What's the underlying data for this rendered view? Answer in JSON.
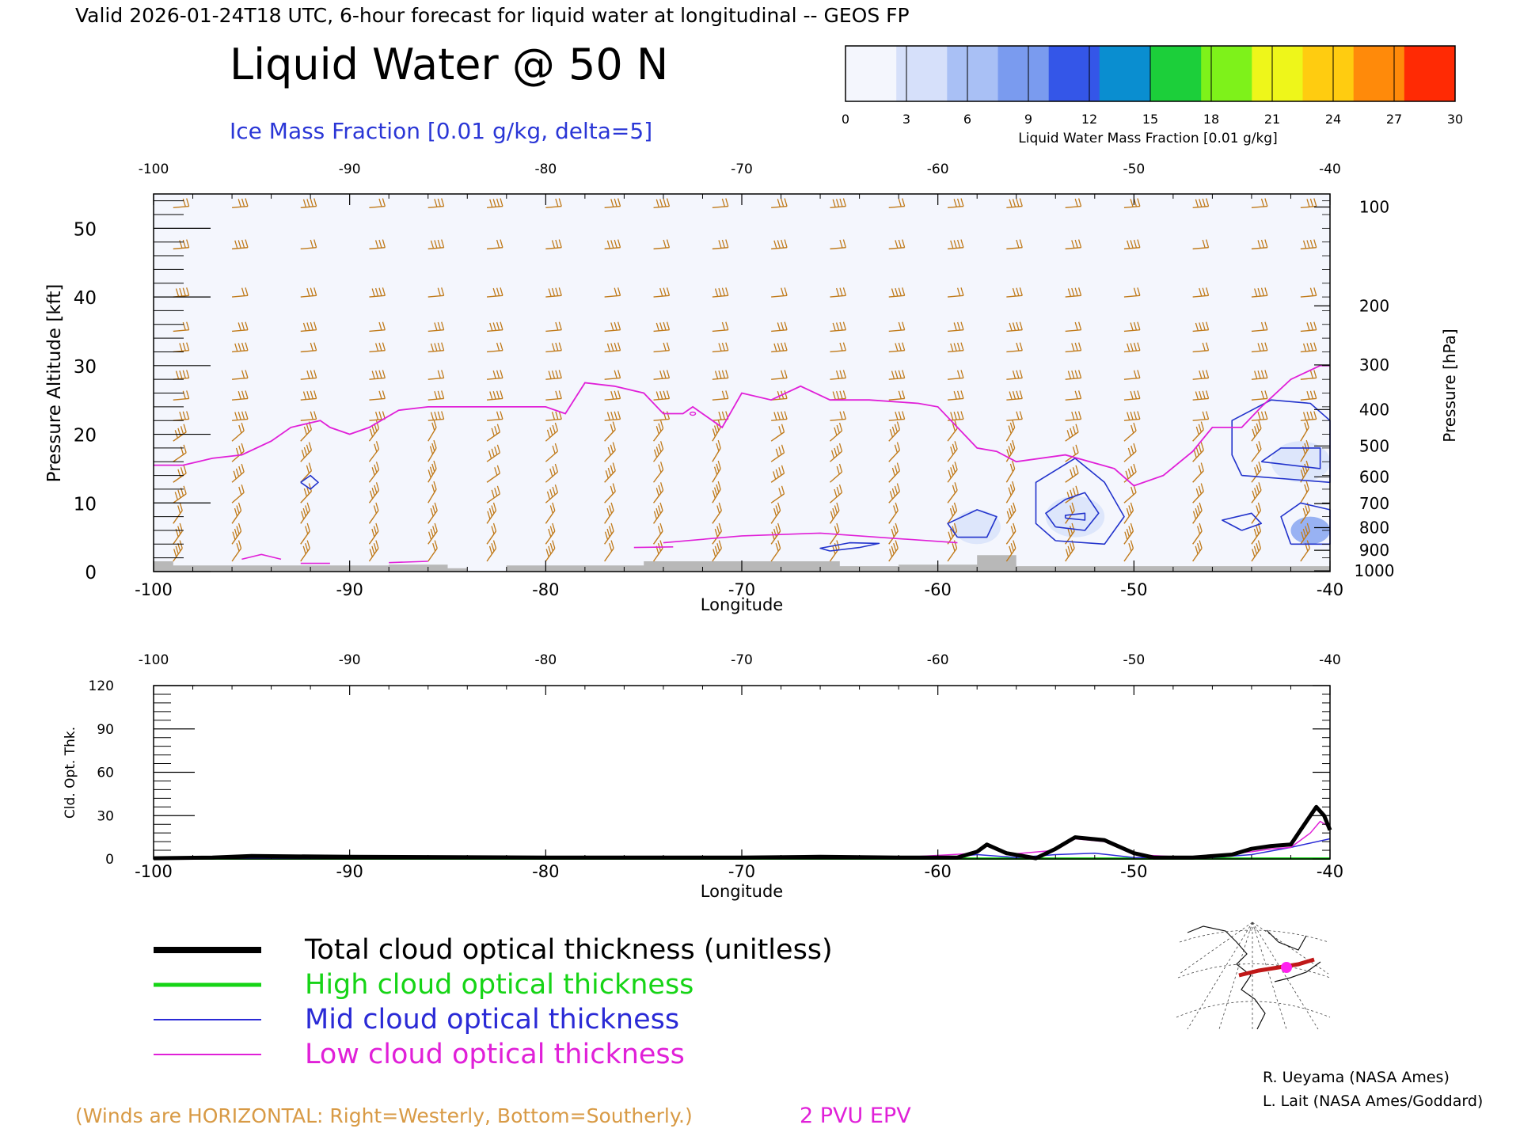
{
  "header": {
    "valid_line": "Valid 2026-01-24T18 UTC, 6-hour forecast for liquid water at longitudinal -- GEOS FP",
    "title": "Liquid Water @ 50 N",
    "contour_label": "Ice Mass Fraction [0.01 g/kg, delta=5]"
  },
  "colorbar": {
    "ticks": [
      "0",
      "3",
      "6",
      "9",
      "12",
      "15",
      "18",
      "21",
      "24",
      "27",
      "30"
    ],
    "label": "Liquid Water Mass Fraction [0.01 g/kg]",
    "colors": [
      "#f4f6fd",
      "#d6e0fa",
      "#a9c0f5",
      "#7a9bef",
      "#3456e8",
      "#0a8ed0",
      "#1ccf3a",
      "#7ef21a",
      "#eef61a",
      "#ffcc10",
      "#ff8a0a",
      "#ff2a04"
    ]
  },
  "colors": {
    "wind_barb": "#c07a1a",
    "ice_contour": "#2233cc",
    "pv_line": "#e020d8",
    "terrain": "#b8b8b8",
    "field_fill": "#f4f6fd"
  },
  "chart_data": [
    {
      "type": "contour-cross-section",
      "xlabel": "Longitude",
      "ylabel": "Pressure Altitude [kft]",
      "y2label": "Pressure [hPa]",
      "xlim": [
        -100,
        -40
      ],
      "ylim": [
        0,
        55
      ],
      "x_ticks": [
        "-100",
        "-90",
        "-80",
        "-70",
        "-60",
        "-50",
        "-40"
      ],
      "y_ticks": [
        "0",
        "10",
        "20",
        "30",
        "40",
        "50"
      ],
      "pressure_ticks": [
        {
          "label": "100",
          "kft": 53.1
        },
        {
          "label": "200",
          "kft": 38.7
        },
        {
          "label": "300",
          "kft": 30.1
        },
        {
          "label": "400",
          "kft": 23.6
        },
        {
          "label": "500",
          "kft": 18.3
        },
        {
          "label": "600",
          "kft": 13.8
        },
        {
          "label": "700",
          "kft": 9.9
        },
        {
          "label": "800",
          "kft": 6.4
        },
        {
          "label": "900",
          "kft": 3.1
        },
        {
          "label": "1000",
          "kft": 0.1
        }
      ],
      "pv_2pvu_line": [
        [
          -100,
          15.5
        ],
        [
          -98.5,
          15.5
        ],
        [
          -97,
          16.5
        ],
        [
          -95.5,
          17
        ],
        [
          -94,
          19
        ],
        [
          -93,
          21
        ],
        [
          -91.5,
          22
        ],
        [
          -91,
          21
        ],
        [
          -90,
          20
        ],
        [
          -89,
          21
        ],
        [
          -87.5,
          23.5
        ],
        [
          -86,
          24
        ],
        [
          -84,
          24
        ],
        [
          -82,
          24
        ],
        [
          -80,
          24
        ],
        [
          -79,
          23
        ],
        [
          -78,
          27.5
        ],
        [
          -76.5,
          27
        ],
        [
          -75,
          26
        ],
        [
          -74,
          23
        ],
        [
          -73,
          23
        ],
        [
          -72.5,
          24
        ],
        [
          -71,
          21
        ],
        [
          -70,
          26
        ],
        [
          -68.5,
          25
        ],
        [
          -67,
          27
        ],
        [
          -65.5,
          25
        ],
        [
          -63.5,
          25
        ],
        [
          -61,
          24.5
        ],
        [
          -60,
          24
        ],
        [
          -58,
          18
        ],
        [
          -57,
          17.5
        ],
        [
          -56,
          16
        ],
        [
          -53.5,
          17
        ],
        [
          -51,
          15
        ],
        [
          -50,
          12.5
        ],
        [
          -48.5,
          14
        ],
        [
          -47,
          17.5
        ],
        [
          -46,
          21
        ],
        [
          -44.5,
          21
        ],
        [
          -43.5,
          24
        ],
        [
          -42,
          28
        ],
        [
          -40.5,
          30
        ],
        [
          -40,
          30
        ]
      ],
      "pv_low_segments": [
        [
          [
            -74,
            4.2
          ],
          [
            -70,
            5.2
          ],
          [
            -66,
            5.6
          ],
          [
            -62,
            4.8
          ],
          [
            -59,
            4.2
          ]
        ],
        [
          [
            -75.5,
            3.5
          ],
          [
            -73.5,
            3.6
          ]
        ],
        [
          [
            -95.5,
            1.8
          ],
          [
            -94.5,
            2.5
          ],
          [
            -93.5,
            1.8
          ]
        ],
        [
          [
            -92.5,
            1.2
          ],
          [
            -91,
            1.2
          ]
        ],
        [
          [
            -88,
            1.3
          ],
          [
            -86,
            1.5
          ]
        ]
      ],
      "pv_loop": [
        -72.5,
        23
      ],
      "ice_contours": [
        [
          [
            -92.5,
            13
          ],
          [
            -92,
            14
          ],
          [
            -91.6,
            13
          ],
          [
            -92,
            12
          ],
          [
            -92.5,
            13
          ]
        ],
        [
          [
            -65.5,
            3
          ],
          [
            -64,
            3.5
          ],
          [
            -63,
            4.1
          ],
          [
            -64.5,
            4.2
          ],
          [
            -66,
            3.4
          ],
          [
            -65.5,
            3
          ]
        ],
        [
          [
            -59,
            5
          ],
          [
            -57.5,
            5
          ],
          [
            -57,
            8
          ],
          [
            -58,
            9
          ],
          [
            -59.5,
            7
          ],
          [
            -59,
            5
          ]
        ],
        [
          [
            -54,
            4.5
          ],
          [
            -51.5,
            4
          ],
          [
            -50.5,
            8
          ],
          [
            -51.5,
            13
          ],
          [
            -53,
            16.5
          ],
          [
            -55,
            13
          ],
          [
            -55,
            7
          ],
          [
            -54,
            4.5
          ]
        ],
        [
          [
            -54,
            6.5
          ],
          [
            -52.5,
            6
          ],
          [
            -51.8,
            8.5
          ],
          [
            -52.5,
            11.5
          ],
          [
            -53.5,
            10.5
          ],
          [
            -54.5,
            8.5
          ],
          [
            -54,
            6.5
          ]
        ],
        [
          [
            -53.5,
            7.8
          ],
          [
            -52.5,
            7.5
          ],
          [
            -52.5,
            8.5
          ],
          [
            -53.5,
            8.2
          ],
          [
            -53.5,
            7.8
          ]
        ],
        [
          [
            -42,
            4
          ],
          [
            -40,
            4
          ],
          [
            -40,
            9
          ],
          [
            -41.5,
            10
          ],
          [
            -42.5,
            8
          ],
          [
            -42,
            4
          ]
        ],
        [
          [
            -44.5,
            6
          ],
          [
            -43.5,
            7
          ],
          [
            -44,
            8.5
          ],
          [
            -45.5,
            7.5
          ],
          [
            -44.5,
            6
          ]
        ],
        [
          [
            -44.5,
            14
          ],
          [
            -40,
            13
          ],
          [
            -40,
            22
          ],
          [
            -41,
            24.5
          ],
          [
            -43,
            25
          ],
          [
            -45,
            22
          ],
          [
            -45,
            17
          ],
          [
            -44.5,
            14
          ]
        ],
        [
          [
            -43.5,
            16
          ],
          [
            -40.5,
            15
          ],
          [
            -40.5,
            18
          ],
          [
            -42.5,
            18
          ],
          [
            -43.5,
            16
          ]
        ]
      ],
      "liquid_patches": [
        {
          "x": -58,
          "y": 6.5,
          "rx": 1.2,
          "ry": 2.5,
          "value": 2
        },
        {
          "x": -53,
          "y": 8,
          "rx": 1.5,
          "ry": 3,
          "value": 2
        },
        {
          "x": -41,
          "y": 6,
          "rx": 1,
          "ry": 2,
          "value": 7
        },
        {
          "x": -41.5,
          "y": 16,
          "rx": 1.5,
          "ry": 3,
          "value": 1
        }
      ],
      "terrain": [
        [
          -100,
          1.5
        ],
        [
          -99,
          1.5
        ],
        [
          -99,
          0.9
        ],
        [
          -88,
          0.9
        ],
        [
          -88,
          1
        ],
        [
          -85,
          1
        ],
        [
          -85,
          0.5
        ],
        [
          -84,
          0.5
        ],
        [
          -84,
          0.1
        ],
        [
          -82,
          0.1
        ],
        [
          -82,
          0.9
        ],
        [
          -75,
          0.9
        ],
        [
          -75,
          1.5
        ],
        [
          -65,
          1.5
        ],
        [
          -65,
          0.8
        ],
        [
          -62,
          0.8
        ],
        [
          -62,
          1
        ],
        [
          -58,
          1
        ],
        [
          -58,
          2.4
        ],
        [
          -56,
          2.4
        ],
        [
          -56,
          0.8
        ],
        [
          -40,
          0.8
        ]
      ],
      "wind_columns": [
        -99,
        -96,
        -92.5,
        -89,
        -86,
        -83,
        -80,
        -77,
        -74.5,
        -71.5,
        -68.5,
        -65.5,
        -62.5,
        -59.5,
        -56.5,
        -53.5,
        -50.5,
        -47,
        -44,
        -41.5
      ]
    },
    {
      "type": "line",
      "xlabel": "Longitude",
      "ylabel": "Cld. Opt. Thk.",
      "xlim": [
        -100,
        -40
      ],
      "ylim": [
        0,
        120
      ],
      "x_ticks": [
        "-100",
        "-90",
        "-80",
        "-70",
        "-60",
        "-50",
        "-40"
      ],
      "y_ticks": [
        "0",
        "30",
        "60",
        "90",
        "120"
      ],
      "series": [
        {
          "name": "Total cloud optical thickness (unitless)",
          "color": "#000000",
          "width": 5,
          "points": [
            [
              -100,
              0.5
            ],
            [
              -97,
              1
            ],
            [
              -95,
              2
            ],
            [
              -90,
              1.5
            ],
            [
              -80,
              1
            ],
            [
              -70,
              1
            ],
            [
              -66,
              1.5
            ],
            [
              -62,
              1
            ],
            [
              -59,
              1
            ],
            [
              -58,
              5
            ],
            [
              -57.5,
              10
            ],
            [
              -56.5,
              4
            ],
            [
              -55,
              0.5
            ],
            [
              -54,
              7
            ],
            [
              -53,
              15
            ],
            [
              -51.5,
              13
            ],
            [
              -50,
              4
            ],
            [
              -49,
              1
            ],
            [
              -47,
              1
            ],
            [
              -45,
              3
            ],
            [
              -44,
              7
            ],
            [
              -43,
              9
            ],
            [
              -42,
              10
            ],
            [
              -41.5,
              20
            ],
            [
              -40.7,
              36
            ],
            [
              -40.3,
              30
            ],
            [
              -40,
              20
            ]
          ]
        },
        {
          "name": "High cloud optical thickness",
          "color": "#16d416",
          "width": 3,
          "points": [
            [
              -100,
              0.3
            ],
            [
              -40,
              0.3
            ]
          ]
        },
        {
          "name": "Mid cloud optical thickness",
          "color": "#2a2ad6",
          "width": 1.5,
          "points": [
            [
              -100,
              0.4
            ],
            [
              -60,
              0.5
            ],
            [
              -58,
              3
            ],
            [
              -56,
              1
            ],
            [
              -54,
              3
            ],
            [
              -52,
              4
            ],
            [
              -50,
              1
            ],
            [
              -46,
              1
            ],
            [
              -44,
              3
            ],
            [
              -42,
              8
            ],
            [
              -40,
              14
            ]
          ]
        },
        {
          "name": "Low cloud optical thickness",
          "color": "#e020d8",
          "width": 1.5,
          "points": [
            [
              -100,
              0.5
            ],
            [
              -95,
              1.5
            ],
            [
              -90,
              1
            ],
            [
              -80,
              1
            ],
            [
              -70,
              1
            ],
            [
              -66,
              1
            ],
            [
              -62,
              1
            ],
            [
              -58,
              4
            ],
            [
              -57.5,
              9
            ],
            [
              -56.5,
              3
            ],
            [
              -54,
              6
            ],
            [
              -53,
              14
            ],
            [
              -51.5,
              12
            ],
            [
              -50,
              3
            ],
            [
              -47,
              1
            ],
            [
              -44,
              5
            ],
            [
              -43,
              7
            ],
            [
              -42,
              8
            ],
            [
              -41,
              18
            ],
            [
              -40.5,
              26
            ],
            [
              -40,
              22
            ]
          ]
        }
      ]
    }
  ],
  "legend": [
    {
      "label": "Total cloud optical thickness (unitless)",
      "color": "#000000",
      "width": 6
    },
    {
      "label": "High cloud optical thickness",
      "color": "#16d416",
      "width": 4
    },
    {
      "label": "Mid cloud optical thickness",
      "color": "#2a2ad6",
      "width": 2
    },
    {
      "label": "Low cloud optical thickness",
      "color": "#e020d8",
      "width": 2
    }
  ],
  "footer": {
    "winds_note": "(Winds are HORIZONTAL: Right=Westerly, Bottom=Southerly.)",
    "pv_label": "2 PVU EPV",
    "credit1": "R. Ueyama (NASA Ames)",
    "credit2": "L. Lait (NASA Ames/Goddard)"
  }
}
